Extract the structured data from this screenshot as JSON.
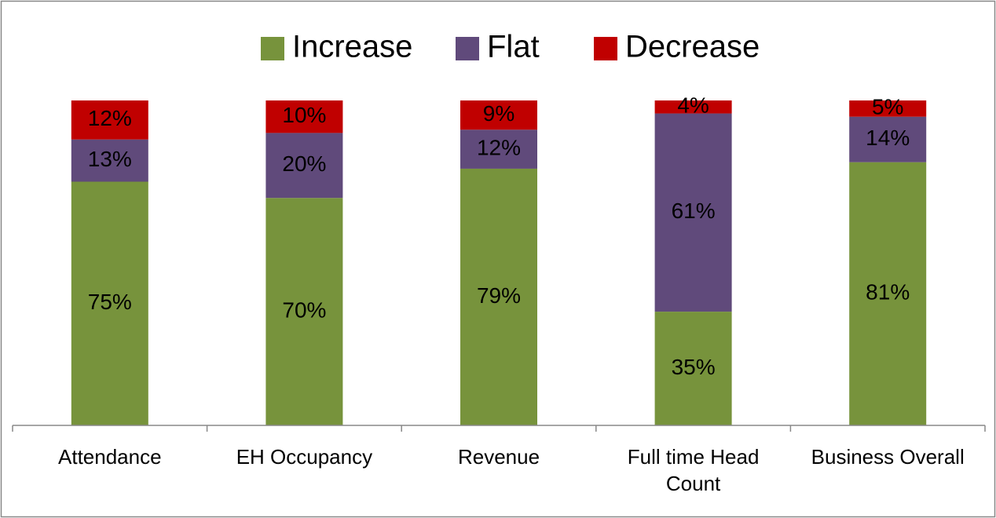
{
  "chart_data": {
    "type": "stacked_bar",
    "categories": [
      "Attendance",
      "EH Occupancy",
      "Revenue",
      "Full time Head Count",
      "Business Overall"
    ],
    "series": [
      {
        "name": "Increase",
        "color": "#77933c",
        "values": [
          75,
          70,
          79,
          35,
          81
        ],
        "value_labels": [
          "75%",
          "70%",
          "79%",
          "35%",
          "81%"
        ]
      },
      {
        "name": "Flat",
        "color": "#604a7b",
        "values": [
          13,
          20,
          12,
          61,
          14
        ],
        "value_labels": [
          "13%",
          "20%",
          "12%",
          "61%",
          "14%"
        ]
      },
      {
        "name": "Decrease",
        "color": "#c00000",
        "values": [
          12,
          10,
          9,
          4,
          5
        ],
        "value_labels": [
          "12%",
          "10%",
          "9%",
          "4%",
          "5%"
        ]
      }
    ],
    "ylim": [
      0,
      100
    ],
    "legend": "top"
  }
}
